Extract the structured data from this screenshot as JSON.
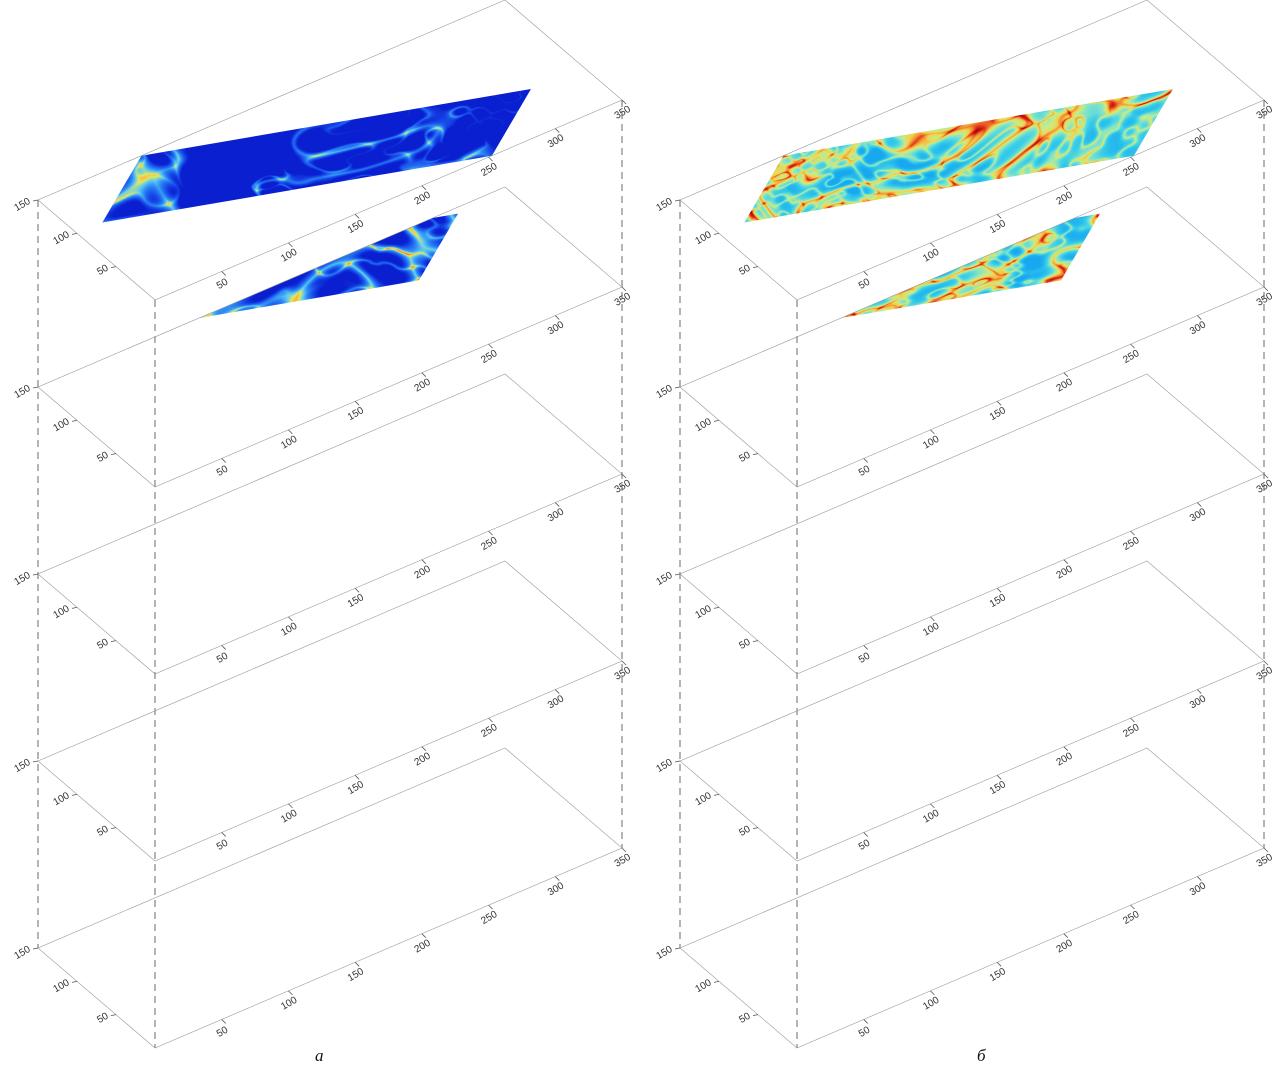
{
  "panels": [
    {
      "label": "а",
      "palette": [
        "#0a1fd0",
        "#1a52ec",
        "#2c88f4",
        "#58c8f4",
        "#e6e85a",
        "#f4a638",
        "#e8341c",
        "#b00a0a"
      ],
      "bias": -0.32
    },
    {
      "label": "б",
      "palette": [
        "#18a8f0",
        "#36cce8",
        "#7ae2ce",
        "#c6ec86",
        "#f2d24c",
        "#f08830",
        "#e02a18",
        "#a0080a"
      ],
      "bias": 0.02
    }
  ],
  "slice_count": 5,
  "axes": {
    "x_ticks": [
      "50",
      "100",
      "150",
      "200",
      "250",
      "300",
      "350"
    ],
    "y_ticks": [
      "50",
      "100",
      "150"
    ],
    "x_range": [
      0,
      350
    ],
    "y_range": [
      0,
      150
    ]
  }
}
